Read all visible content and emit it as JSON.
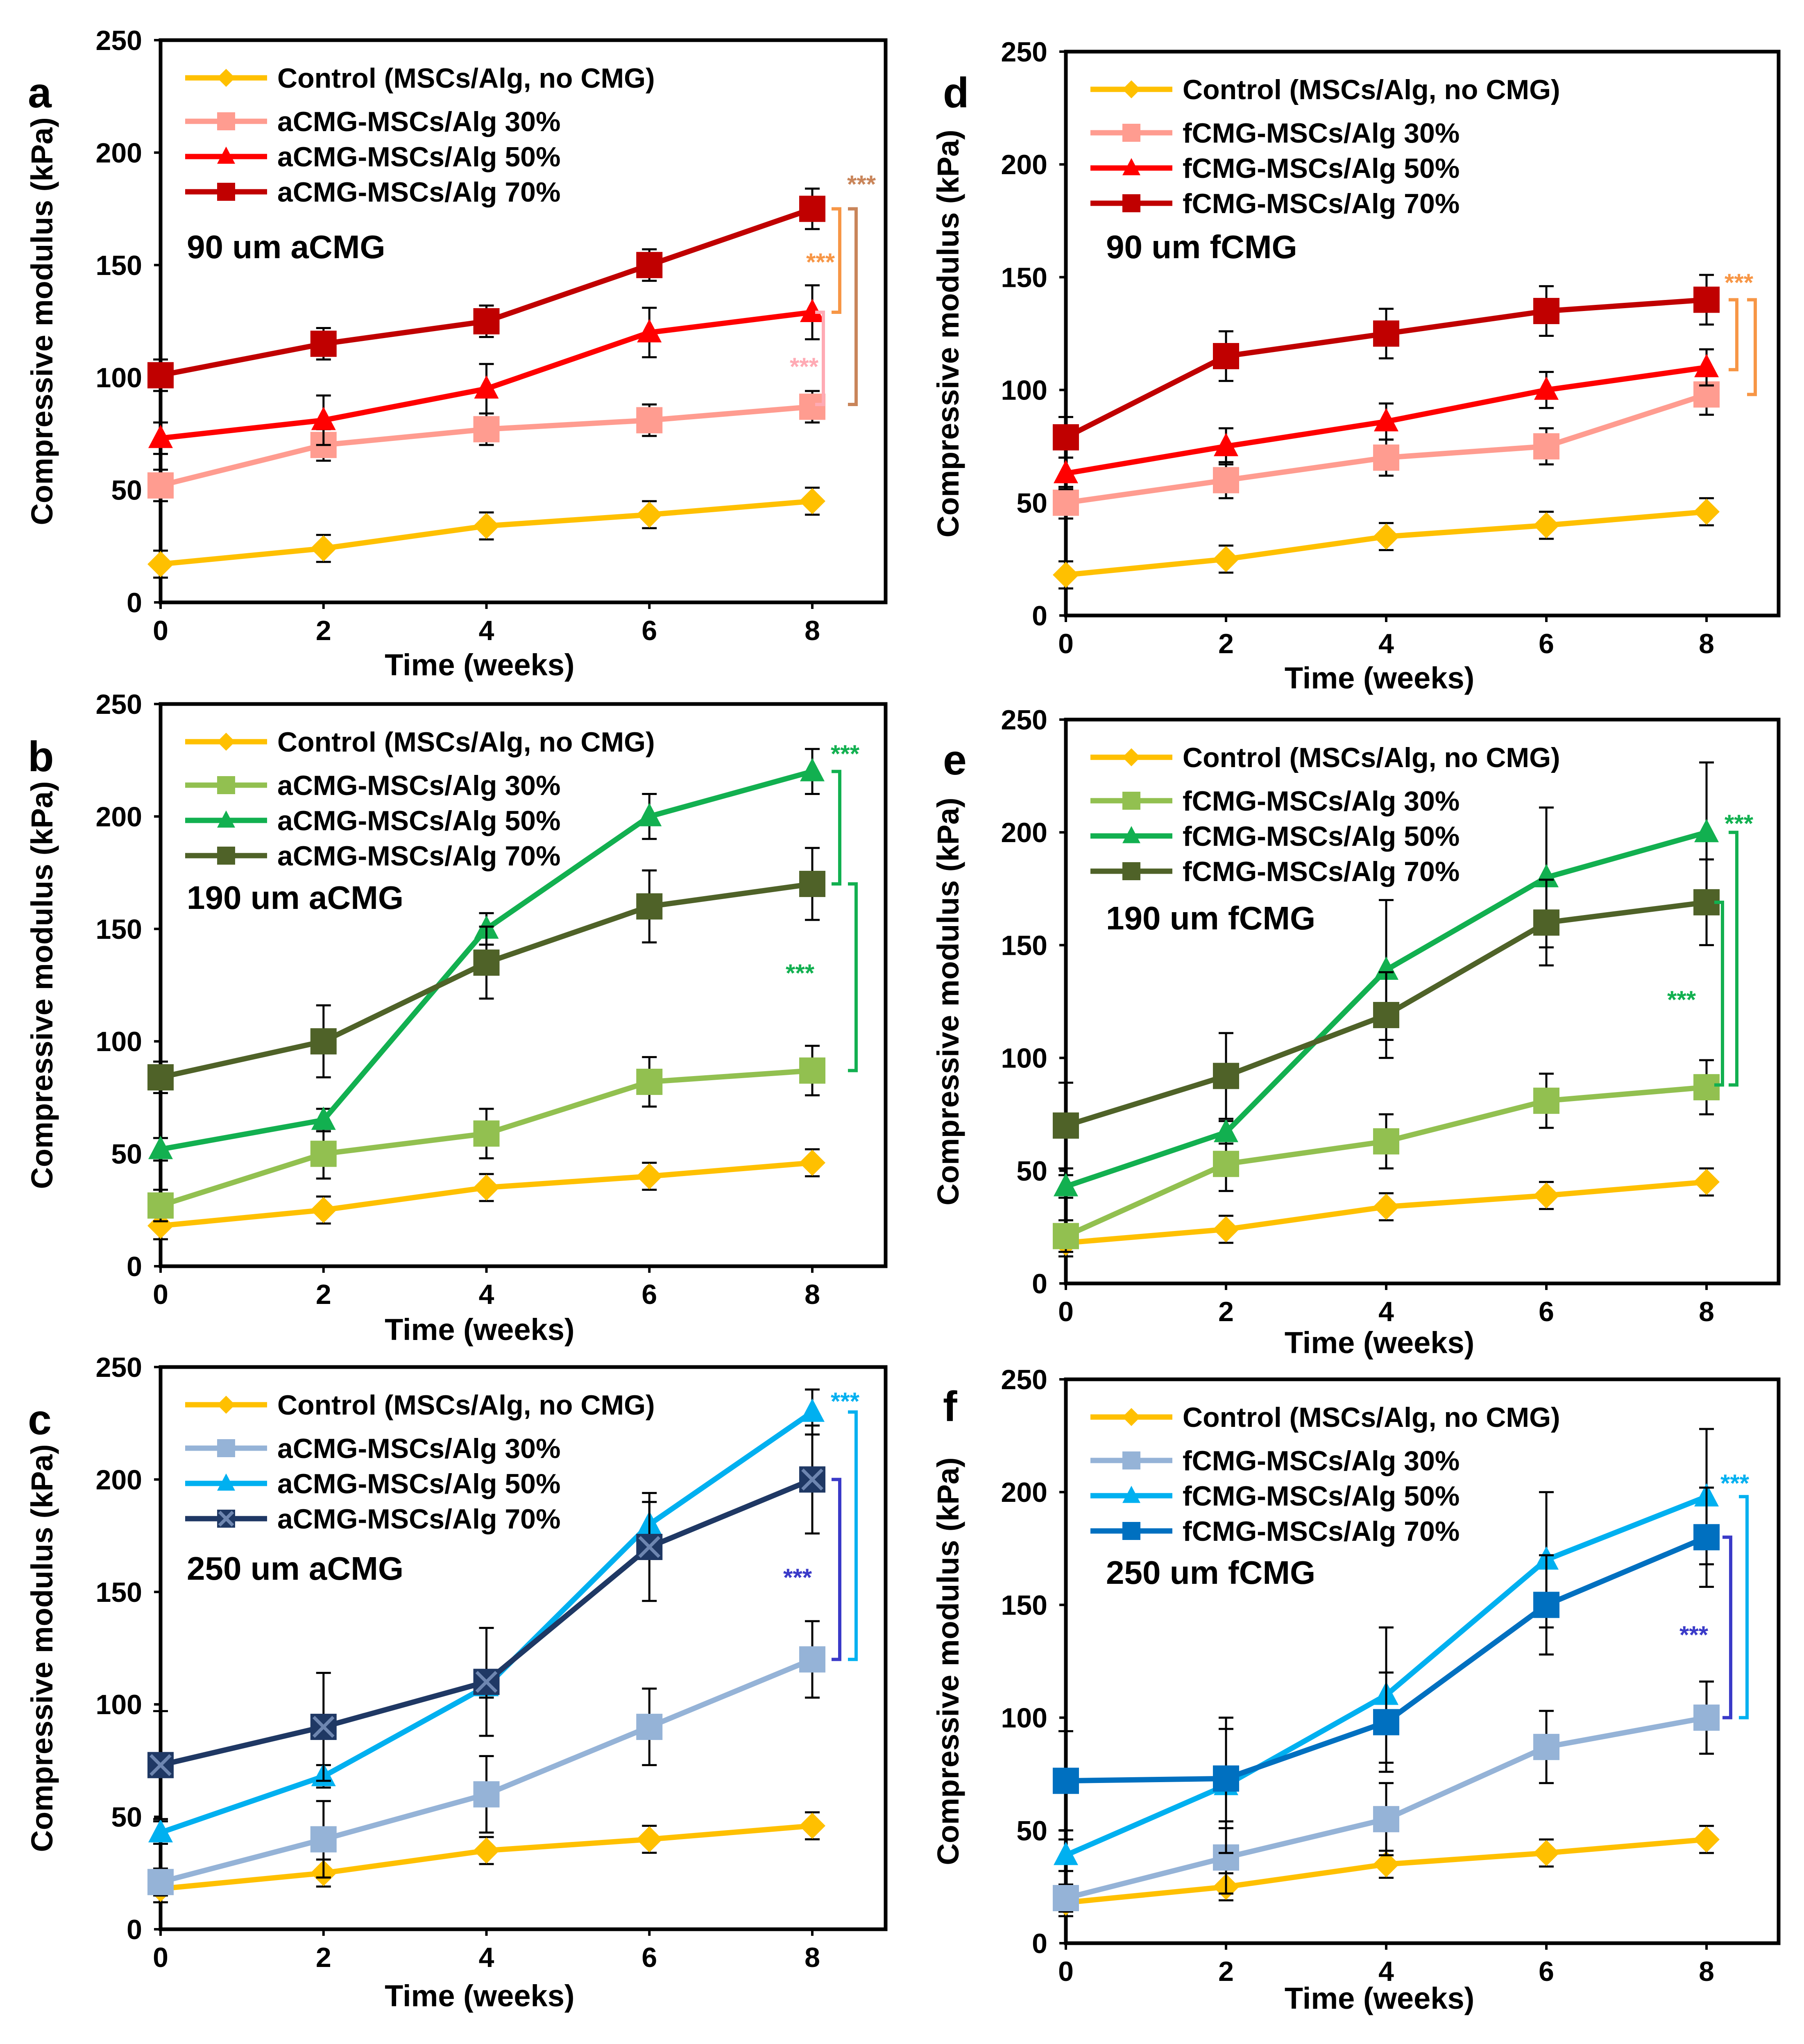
{
  "figure": {
    "panels_order": [
      "a",
      "b",
      "c",
      "d",
      "e",
      "f"
    ]
  },
  "chart_data": [
    {
      "id": "a",
      "type": "line",
      "panel_label": "a",
      "annotation": "90 um aCMG",
      "xlabel": "Time (weeks)",
      "ylabel": "Compressive modulus (kPa)",
      "x": [
        0,
        2,
        4,
        6,
        8
      ],
      "xticks": [
        "0",
        "2",
        "4",
        "6",
        "8"
      ],
      "xlim": [
        0,
        8.9
      ],
      "ylim": [
        0,
        250
      ],
      "yticks": [
        "0",
        "50",
        "100",
        "150",
        "200",
        "250"
      ],
      "grid": false,
      "legend_position": "top-left",
      "series": [
        {
          "name": "Control (MSCs/Alg, no CMG)",
          "marker": "diamond",
          "color": "#FFC000",
          "values": [
            17,
            24,
            34,
            39,
            45
          ],
          "errors": [
            6,
            6,
            6,
            6,
            6
          ]
        },
        {
          "name": "aCMG-MSCs/Alg 30%",
          "marker": "square",
          "color": "#FF9C90",
          "values": [
            52,
            70,
            77,
            81,
            87
          ],
          "errors": [
            7,
            7,
            7,
            7,
            7
          ]
        },
        {
          "name": "aCMG-MSCs/Alg 50%",
          "marker": "triangle",
          "color": "#FF0000",
          "values": [
            73,
            81,
            95,
            120,
            129
          ],
          "errors": [
            7,
            11,
            11,
            11,
            12
          ]
        },
        {
          "name": "aCMG-MSCs/Alg 70%",
          "marker": "square",
          "color": "#C00000",
          "values": [
            101,
            115,
            125,
            150,
            175
          ],
          "errors": [
            7,
            7,
            7,
            7,
            9
          ]
        }
      ],
      "significance": [
        {
          "label": "***",
          "color": "#C9855A"
        },
        {
          "label": "***",
          "color": "#F79646"
        },
        {
          "label": "***",
          "color": "#FFAAB4"
        }
      ]
    },
    {
      "id": "b",
      "type": "line",
      "panel_label": "b",
      "annotation": "190 um aCMG",
      "xlabel": "Time (weeks)",
      "ylabel": "Compressive modulus (kPa)",
      "x": [
        0,
        2,
        4,
        6,
        8
      ],
      "xticks": [
        "0",
        "2",
        "4",
        "6",
        "8"
      ],
      "xlim": [
        0,
        8.9
      ],
      "ylim": [
        0,
        250
      ],
      "yticks": [
        "0",
        "50",
        "100",
        "150",
        "200",
        "250"
      ],
      "grid": false,
      "legend_position": "top-left",
      "series": [
        {
          "name": "Control (MSCs/Alg, no CMG)",
          "marker": "diamond",
          "color": "#FFC000",
          "values": [
            18,
            25,
            35,
            40,
            46
          ],
          "errors": [
            6,
            6,
            6,
            6,
            6
          ]
        },
        {
          "name": "aCMG-MSCs/Alg 30%",
          "marker": "square",
          "color": "#92C050",
          "values": [
            27,
            50,
            59,
            82,
            87
          ],
          "errors": [
            7,
            11,
            11,
            11,
            11
          ]
        },
        {
          "name": "aCMG-MSCs/Alg 50%",
          "marker": "triangle",
          "color": "#12B050",
          "values": [
            52,
            65,
            150,
            200,
            220
          ],
          "errors": [
            5,
            5,
            7,
            10,
            10
          ]
        },
        {
          "name": "aCMG-MSCs/Alg 70%",
          "marker": "square",
          "color": "#4F6228",
          "values": [
            84,
            100,
            135,
            160,
            170
          ],
          "errors": [
            7,
            16,
            16,
            16,
            16
          ]
        }
      ],
      "significance": [
        {
          "label": "***",
          "color": "#12B050"
        },
        {
          "label": "***",
          "color": "#12B050"
        }
      ]
    },
    {
      "id": "c",
      "type": "line",
      "panel_label": "c",
      "annotation": "250 um aCMG",
      "xlabel": "Time (weeks)",
      "ylabel": "Compressive modulus (kPa)",
      "x": [
        0,
        2,
        4,
        6,
        8
      ],
      "xticks": [
        "0",
        "2",
        "4",
        "6",
        "8"
      ],
      "xlim": [
        0,
        8.9
      ],
      "ylim": [
        0,
        250
      ],
      "yticks": [
        "0",
        "50",
        "100",
        "150",
        "200",
        "250"
      ],
      "grid": false,
      "legend_position": "top-left",
      "series": [
        {
          "name": "Control (MSCs/Alg, no CMG)",
          "marker": "diamond",
          "color": "#FFC000",
          "values": [
            18,
            25,
            35,
            40,
            46
          ],
          "errors": [
            6,
            6,
            6,
            6,
            6
          ]
        },
        {
          "name": "aCMG-MSCs/Alg 30%",
          "marker": "square",
          "color": "#95B3D7",
          "values": [
            21,
            40,
            60,
            90,
            120
          ],
          "errors": [
            6,
            17,
            17,
            17,
            17
          ]
        },
        {
          "name": "aCMG-MSCs/Alg 50%",
          "marker": "triangle",
          "color": "#00B0F0",
          "values": [
            43,
            68,
            108,
            180,
            230
          ],
          "errors": [
            5,
            5,
            5,
            10,
            10
          ]
        },
        {
          "name": "aCMG-MSCs/Alg 70%",
          "marker": "x-square",
          "color": "#1F3864",
          "values": [
            73,
            90,
            110,
            170,
            200
          ],
          "errors": [
            24,
            24,
            24,
            24,
            24
          ]
        }
      ],
      "significance": [
        {
          "label": "***",
          "color": "#00B0F0"
        },
        {
          "label": "***",
          "color": "#3A3AC8"
        }
      ]
    },
    {
      "id": "d",
      "type": "line",
      "panel_label": "d",
      "annotation": "90 um fCMG",
      "xlabel": "Time (weeks)",
      "ylabel": "Compressive modulus (kPa)",
      "x": [
        0,
        2,
        4,
        6,
        8
      ],
      "xticks": [
        "0",
        "2",
        "4",
        "6",
        "8"
      ],
      "xlim": [
        0,
        8.9
      ],
      "ylim": [
        0,
        250
      ],
      "yticks": [
        "0",
        "50",
        "100",
        "150",
        "200",
        "250"
      ],
      "grid": false,
      "legend_position": "top-left",
      "series": [
        {
          "name": "Control (MSCs/Alg, no CMG)",
          "marker": "diamond",
          "color": "#FFC000",
          "values": [
            18,
            25,
            35,
            40,
            46
          ],
          "errors": [
            6,
            6,
            6,
            6,
            6
          ]
        },
        {
          "name": "fCMG-MSCs/Alg 30%",
          "marker": "square",
          "color": "#FF9C90",
          "values": [
            50,
            60,
            70,
            75,
            98
          ],
          "errors": [
            7,
            8,
            8,
            8,
            9
          ]
        },
        {
          "name": "fCMG-MSCs/Alg 50%",
          "marker": "triangle",
          "color": "#FF0000",
          "values": [
            63,
            75,
            86,
            100,
            110
          ],
          "errors": [
            7,
            8,
            8,
            8,
            8
          ]
        },
        {
          "name": "fCMG-MSCs/Alg 70%",
          "marker": "square",
          "color": "#C00000",
          "values": [
            79,
            115,
            125,
            135,
            140
          ],
          "errors": [
            9,
            11,
            11,
            11,
            11
          ]
        }
      ],
      "significance": [
        {
          "label": "***",
          "color": "#F79646"
        }
      ]
    },
    {
      "id": "e",
      "type": "line",
      "panel_label": "e",
      "annotation": "190 um fCMG",
      "xlabel": "Time (weeks)",
      "ylabel": "Compressive modulus (kPa)",
      "x": [
        0,
        2,
        4,
        6,
        8
      ],
      "xticks": [
        "0",
        "2",
        "4",
        "6",
        "8"
      ],
      "xlim": [
        0,
        8.9
      ],
      "ylim": [
        0,
        250
      ],
      "yticks": [
        "0",
        "50",
        "100",
        "150",
        "200",
        "250"
      ],
      "grid": false,
      "legend_position": "top-left",
      "series": [
        {
          "name": "Control (MSCs/Alg, no CMG)",
          "marker": "diamond",
          "color": "#FFC000",
          "values": [
            18,
            24,
            34,
            39,
            45
          ],
          "errors": [
            6,
            6,
            6,
            6,
            6
          ]
        },
        {
          "name": "fCMG-MSCs/Alg 30%",
          "marker": "square",
          "color": "#92C050",
          "values": [
            21,
            53,
            63,
            81,
            87
          ],
          "errors": [
            7,
            12,
            12,
            12,
            12
          ]
        },
        {
          "name": "fCMG-MSCs/Alg 50%",
          "marker": "triangle",
          "color": "#12B050",
          "values": [
            43,
            67,
            139,
            180,
            200
          ],
          "errors": [
            5,
            5,
            31,
            31,
            31
          ]
        },
        {
          "name": "fCMG-MSCs/Alg 70%",
          "marker": "square",
          "color": "#4F6228",
          "values": [
            70,
            92,
            119,
            160,
            169
          ],
          "errors": [
            19,
            19,
            19,
            19,
            19
          ]
        }
      ],
      "significance": [
        {
          "label": "***",
          "color": "#12B050"
        },
        {
          "label": "***",
          "color": "#12B050"
        }
      ]
    },
    {
      "id": "f",
      "type": "line",
      "panel_label": "f",
      "annotation": "250 um fCMG",
      "xlabel": "Time (weeks)",
      "ylabel": "Compressive modulus (kPa)",
      "x": [
        0,
        2,
        4,
        6,
        8
      ],
      "xticks": [
        "0",
        "2",
        "4",
        "6",
        "8"
      ],
      "xlim": [
        0,
        8.9
      ],
      "ylim": [
        0,
        250
      ],
      "yticks": [
        "0",
        "50",
        "100",
        "150",
        "200",
        "250"
      ],
      "grid": false,
      "legend_position": "top-left",
      "series": [
        {
          "name": "Control (MSCs/Alg, no CMG)",
          "marker": "diamond",
          "color": "#FFC000",
          "values": [
            18,
            25,
            35,
            40,
            46
          ],
          "errors": [
            6,
            6,
            6,
            6,
            6
          ]
        },
        {
          "name": "fCMG-MSCs/Alg 30%",
          "marker": "square",
          "color": "#95B3D7",
          "values": [
            20,
            38,
            55,
            87,
            100
          ],
          "errors": [
            6,
            16,
            16,
            16,
            16
          ]
        },
        {
          "name": "fCMG-MSCs/Alg 50%",
          "marker": "triangle",
          "color": "#00B0F0",
          "values": [
            39,
            70,
            110,
            170,
            198
          ],
          "errors": [
            7,
            30,
            30,
            30,
            30
          ]
        },
        {
          "name": "fCMG-MSCs/Alg 70%",
          "marker": "square",
          "color": "#0070C0",
          "values": [
            72,
            73,
            98,
            150,
            180
          ],
          "errors": [
            22,
            22,
            22,
            22,
            22
          ]
        }
      ],
      "significance": [
        {
          "label": "***",
          "color": "#00B0F0"
        },
        {
          "label": "***",
          "color": "#3A3AC8"
        }
      ]
    }
  ]
}
